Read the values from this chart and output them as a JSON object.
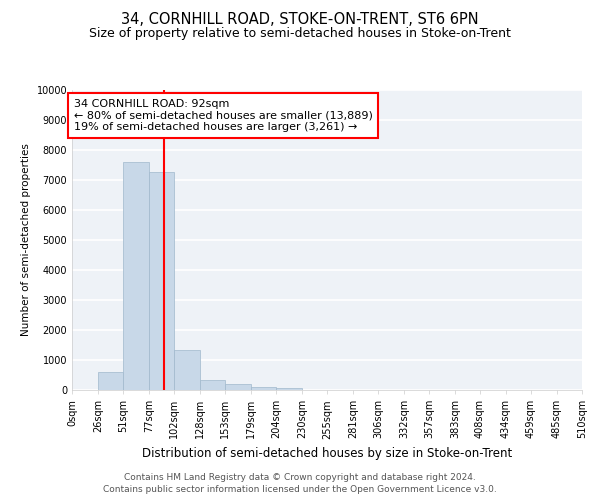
{
  "title": "34, CORNHILL ROAD, STOKE-ON-TRENT, ST6 6PN",
  "subtitle": "Size of property relative to semi-detached houses in Stoke-on-Trent",
  "xlabel": "Distribution of semi-detached houses by size in Stoke-on-Trent",
  "ylabel": "Number of semi-detached properties",
  "bin_edges": [
    0,
    26,
    51,
    77,
    102,
    128,
    153,
    179,
    204,
    230,
    255,
    281,
    306,
    332,
    357,
    383,
    408,
    434,
    459,
    485,
    510
  ],
  "bin_labels": [
    "0sqm",
    "26sqm",
    "51sqm",
    "77sqm",
    "102sqm",
    "128sqm",
    "153sqm",
    "179sqm",
    "204sqm",
    "230sqm",
    "255sqm",
    "281sqm",
    "306sqm",
    "332sqm",
    "357sqm",
    "383sqm",
    "408sqm",
    "434sqm",
    "459sqm",
    "485sqm",
    "510sqm"
  ],
  "bar_heights": [
    0,
    600,
    7600,
    7250,
    1350,
    325,
    200,
    100,
    75,
    0,
    0,
    0,
    0,
    0,
    0,
    0,
    0,
    0,
    0,
    0
  ],
  "bar_color": "#c8d8e8",
  "bar_edgecolor": "#a0b8cc",
  "property_line_x": 92,
  "property_line_color": "red",
  "annotation_text": "34 CORNHILL ROAD: 92sqm\n← 80% of semi-detached houses are smaller (13,889)\n19% of semi-detached houses are larger (3,261) →",
  "annotation_box_color": "white",
  "annotation_box_edgecolor": "red",
  "ylim": [
    0,
    10000
  ],
  "yticks": [
    0,
    1000,
    2000,
    3000,
    4000,
    5000,
    6000,
    7000,
    8000,
    9000,
    10000
  ],
  "footer_line1": "Contains HM Land Registry data © Crown copyright and database right 2024.",
  "footer_line2": "Contains public sector information licensed under the Open Government Licence v3.0.",
  "background_color": "#eef2f7",
  "grid_color": "white",
  "title_fontsize": 10.5,
  "subtitle_fontsize": 9,
  "xlabel_fontsize": 8.5,
  "ylabel_fontsize": 7.5,
  "tick_fontsize": 7,
  "annotation_fontsize": 8,
  "footer_fontsize": 6.5
}
